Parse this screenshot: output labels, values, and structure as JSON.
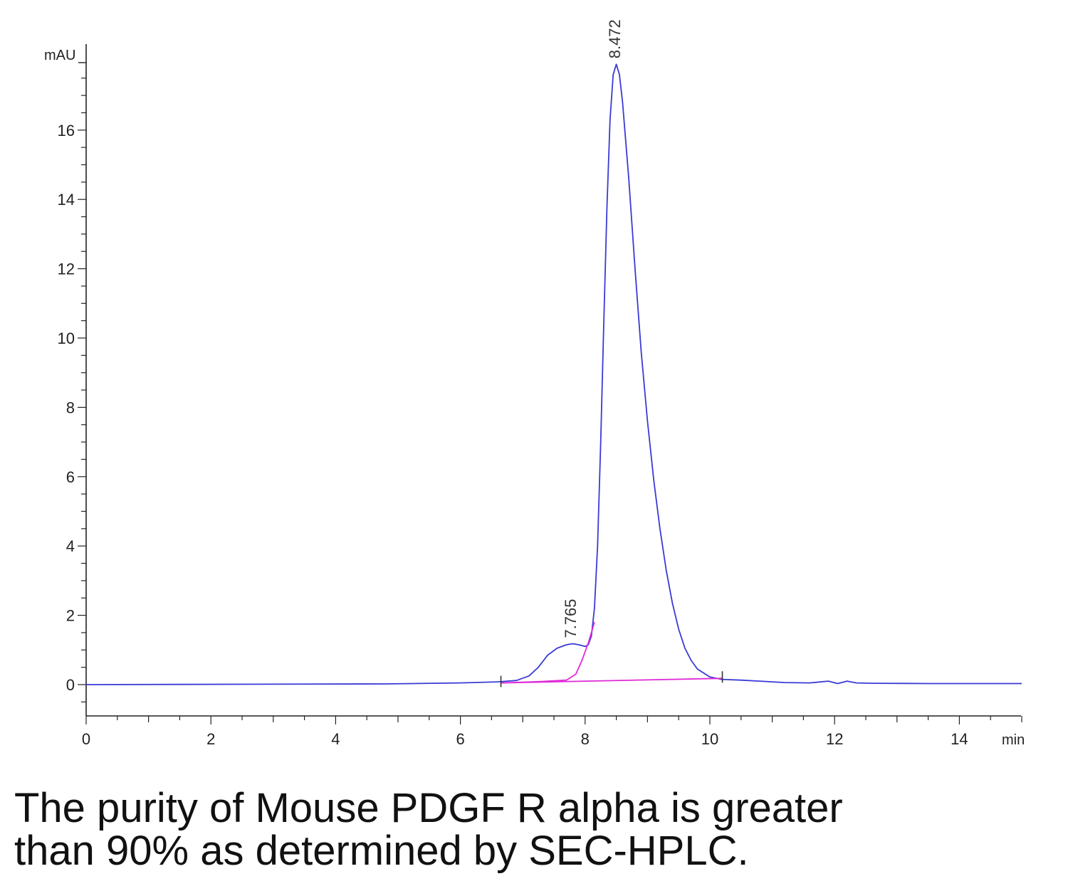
{
  "chart_data": {
    "type": "line",
    "y_unit": "mAU",
    "x_unit": "min",
    "xlim": [
      0,
      15
    ],
    "ylim": [
      -0.9,
      18.1
    ],
    "x_ticks": [
      0,
      2,
      4,
      6,
      8,
      10,
      12,
      14
    ],
    "y_ticks": [
      0,
      2,
      4,
      6,
      8,
      10,
      12,
      14,
      16
    ],
    "grid": false,
    "series": [
      {
        "color": "#3a3ad6",
        "x": [
          0,
          4.8,
          6.0,
          6.6,
          6.9,
          7.1,
          7.25,
          7.4,
          7.55,
          7.7,
          7.8,
          7.9,
          8.0,
          8.05,
          8.1,
          8.15,
          8.2,
          8.25,
          8.3,
          8.35,
          8.4,
          8.45,
          8.5,
          8.55,
          8.6,
          8.7,
          8.8,
          8.9,
          9.0,
          9.1,
          9.2,
          9.3,
          9.4,
          9.5,
          9.6,
          9.7,
          9.8,
          10.0,
          10.2,
          10.5,
          10.8,
          11.2,
          11.6,
          11.9,
          12.05,
          12.2,
          12.35,
          12.6,
          13.5,
          15.0
        ],
        "y": [
          0.0,
          0.02,
          0.05,
          0.08,
          0.12,
          0.25,
          0.5,
          0.85,
          1.05,
          1.15,
          1.18,
          1.15,
          1.1,
          1.15,
          1.4,
          2.2,
          4.0,
          7.0,
          10.5,
          13.8,
          16.3,
          17.6,
          17.9,
          17.6,
          16.8,
          14.6,
          12.0,
          9.6,
          7.6,
          5.9,
          4.5,
          3.3,
          2.35,
          1.6,
          1.05,
          0.7,
          0.45,
          0.22,
          0.15,
          0.13,
          0.1,
          0.06,
          0.05,
          0.1,
          0.03,
          0.1,
          0.05,
          0.04,
          0.03,
          0.03
        ]
      },
      {
        "color": "#e02ad6",
        "x": [
          6.65,
          7.3,
          7.7,
          7.85,
          7.95,
          8.05,
          8.1,
          8.15
        ],
        "y": [
          0.05,
          0.09,
          0.13,
          0.3,
          0.7,
          1.2,
          1.5,
          1.8
        ]
      },
      {
        "color": "#e02ad6",
        "x": [
          6.65,
          10.2
        ],
        "y": [
          0.05,
          0.18
        ]
      }
    ],
    "peak_labels": [
      {
        "x": 7.765,
        "y": 1.18,
        "text": "7.765"
      },
      {
        "x": 8.472,
        "y": 17.9,
        "text": "8.472"
      }
    ],
    "integration_marks": [
      6.65,
      10.2
    ]
  },
  "caption": {
    "line1": "The purity of Mouse PDGF R alpha is greater",
    "line2": "than 90% as determined by SEC-HPLC."
  }
}
